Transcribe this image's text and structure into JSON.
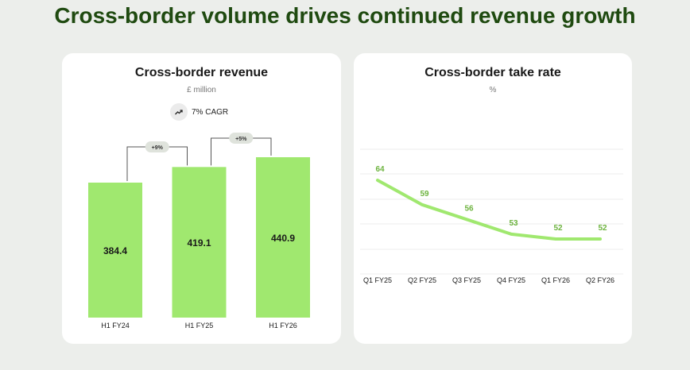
{
  "page_title": "Cross-border volume drives continued revenue growth",
  "colors": {
    "accent": "#a0e86f",
    "line_label": "#6db33f",
    "title": "#1f4a10"
  },
  "chart_data": [
    {
      "type": "bar",
      "title": "Cross-border revenue",
      "subtitle": "£ million",
      "badge": {
        "icon": "trend-up-icon",
        "label": "7% CAGR"
      },
      "categories": [
        "H1 FY24",
        "H1 FY25",
        "H1 FY26"
      ],
      "values": [
        384.4,
        419.1,
        440.9
      ],
      "value_labels": [
        "384.4",
        "419.1",
        "440.9"
      ],
      "growth_annotations": [
        {
          "from": "H1 FY24",
          "to": "H1 FY25",
          "label": "+9%"
        },
        {
          "from": "H1 FY25",
          "to": "H1 FY26",
          "label": "+5%"
        }
      ],
      "ylim": [
        0,
        470
      ]
    },
    {
      "type": "line",
      "title": "Cross-border take rate",
      "subtitle": "%",
      "categories": [
        "Q1 FY25",
        "Q2 FY25",
        "Q3 FY25",
        "Q4 FY25",
        "Q1 FY26",
        "Q2 FY26"
      ],
      "values": [
        64,
        59,
        56,
        53,
        52,
        52
      ],
      "ylim": [
        40,
        70
      ],
      "grid": true
    }
  ]
}
